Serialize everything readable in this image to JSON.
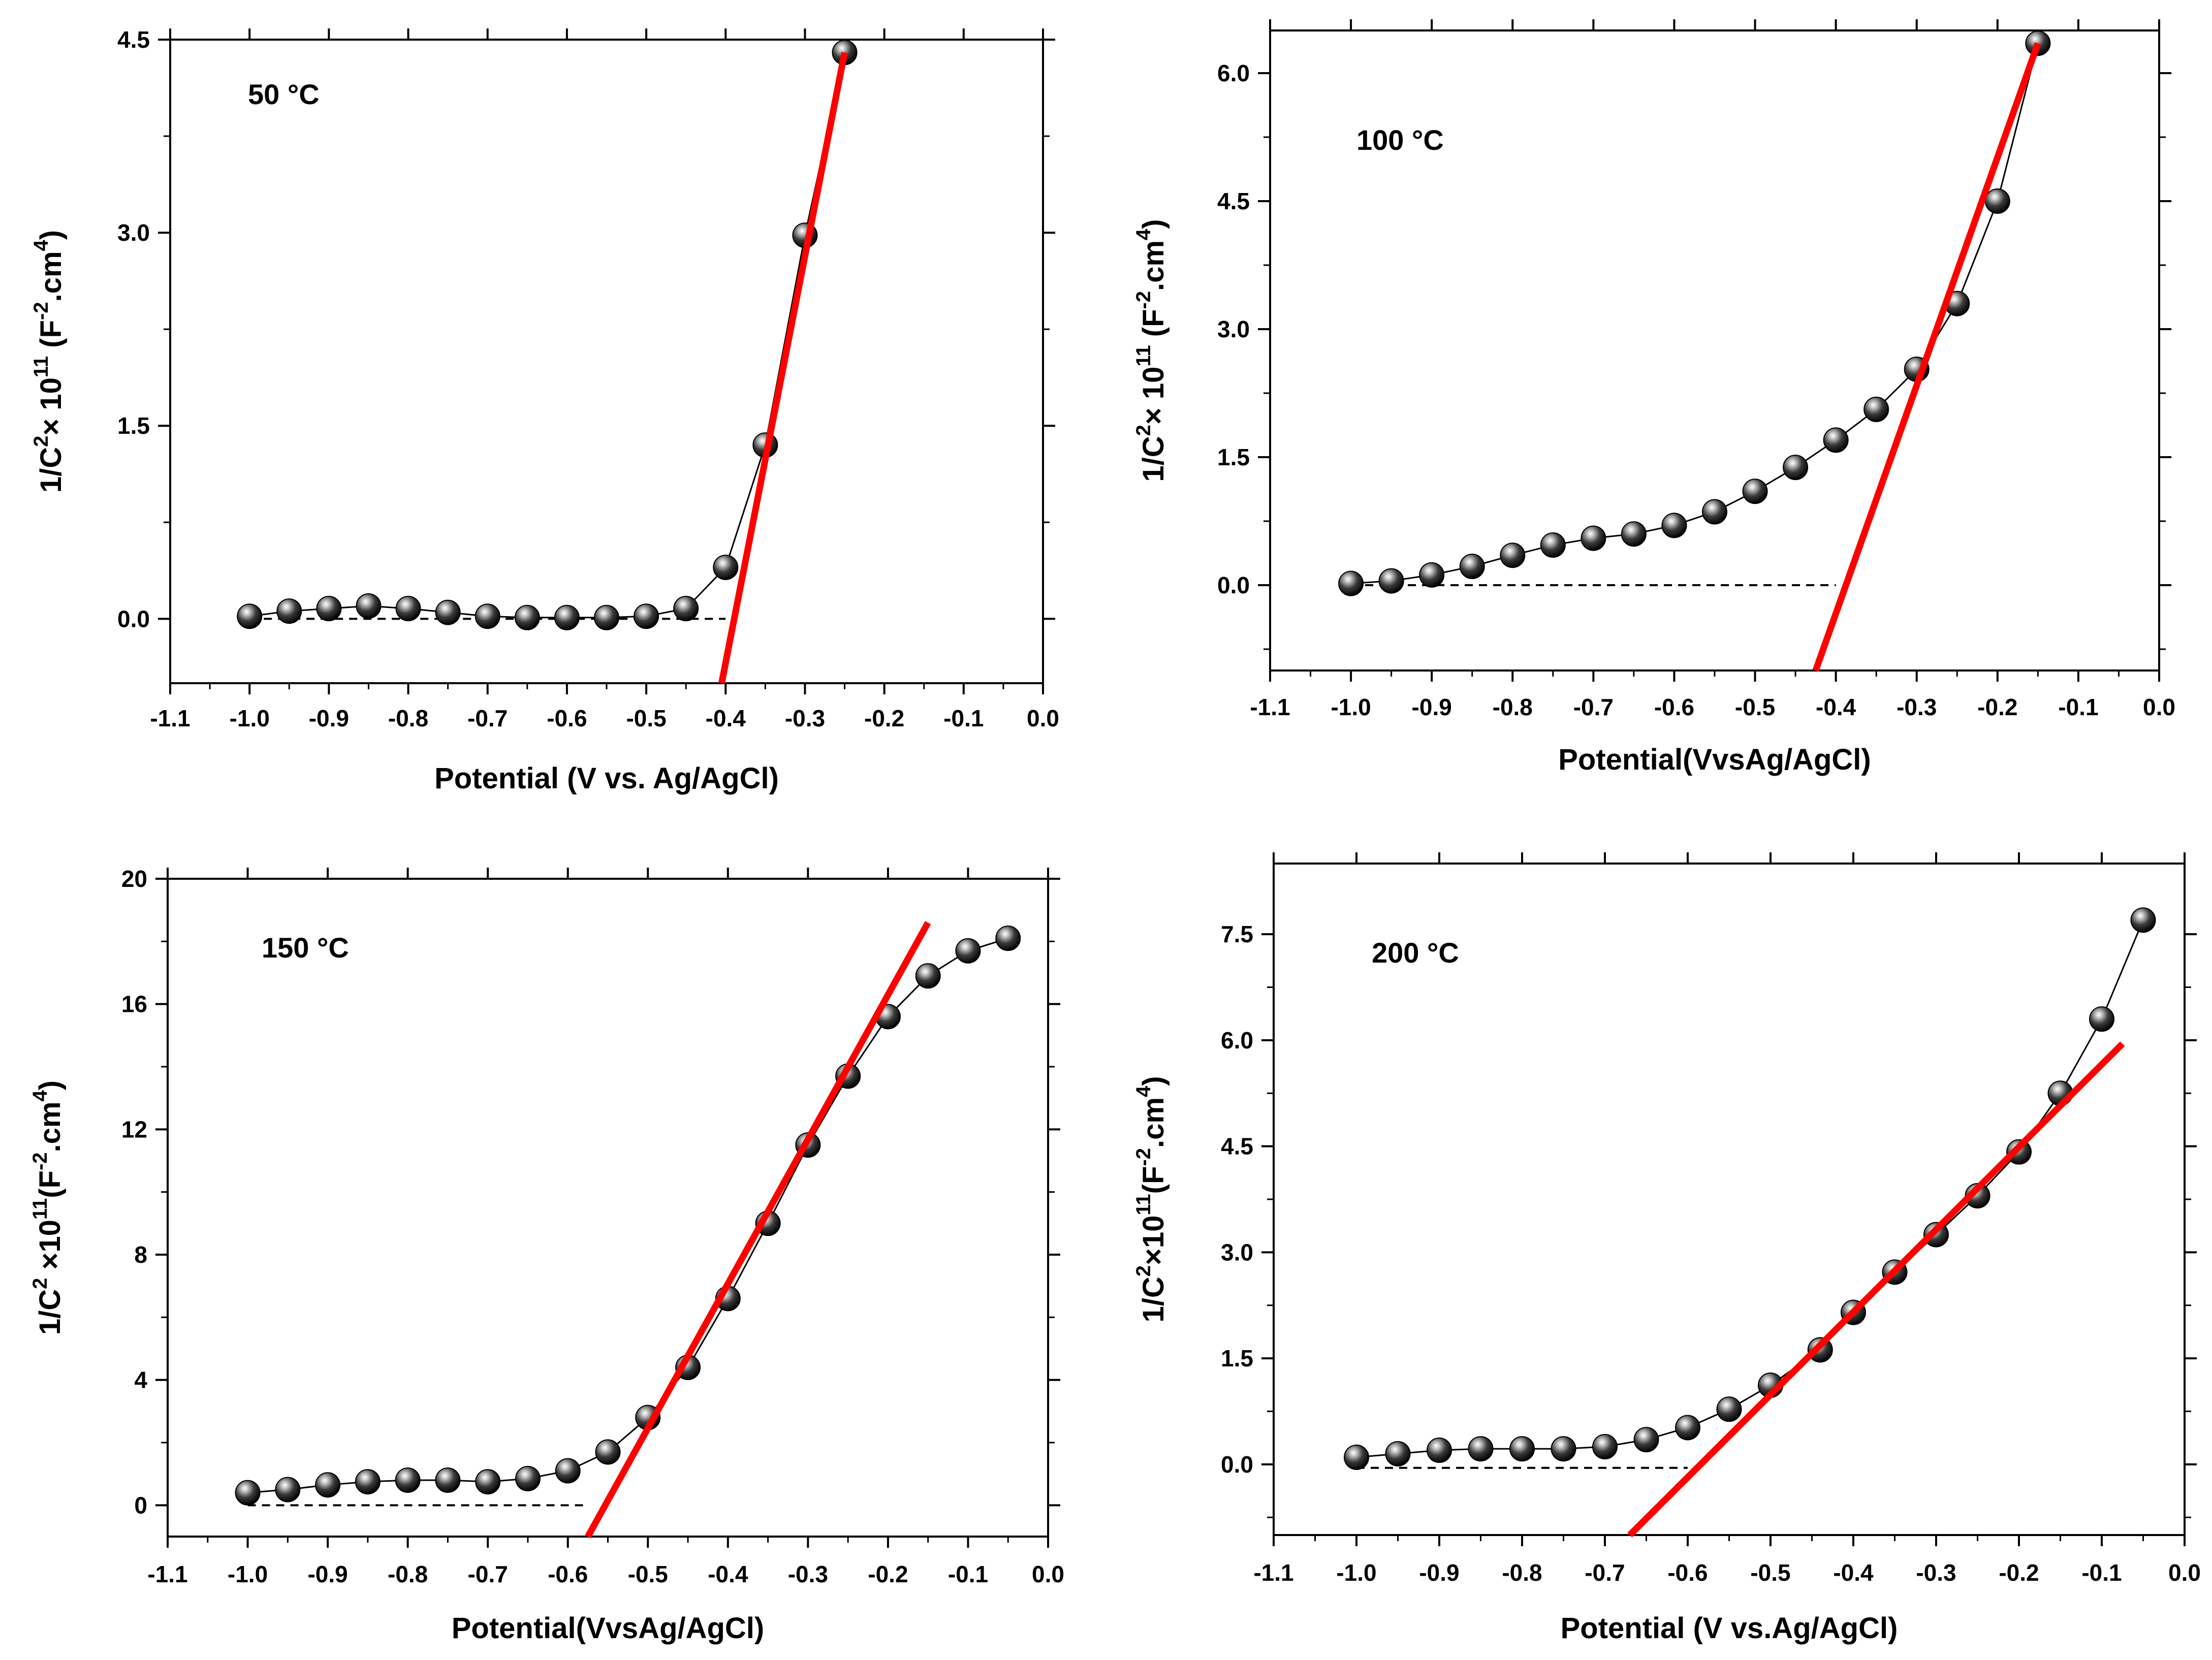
{
  "chart_data": [
    {
      "type": "scatter",
      "annotation": "50 °C",
      "xlabel": "Potential (V vs. Ag/AgCl)",
      "ylabel": {
        "pre": "1/C",
        "sup1": "2",
        "mid": "× 10",
        "sup2": "11",
        "unit_pre": " (F",
        "sup3": "-2",
        "unit_mid": ".cm",
        "sup4": "4",
        "unit_post": ")"
      },
      "xlim": [
        -1.1,
        0.0
      ],
      "ylim": [
        -0.5,
        4.5
      ],
      "xticks": [
        -1.1,
        -1.0,
        -0.9,
        -0.8,
        -0.7,
        -0.6,
        -0.5,
        -0.4,
        -0.3,
        -0.2,
        -0.1,
        0.0
      ],
      "xtick_labels": [
        "-1.1",
        "-1.0",
        "-0.9",
        "-0.8",
        "-0.7",
        "-0.6",
        "-0.5",
        "-0.4",
        "-0.3",
        "-0.2",
        "-0.1",
        "0.0"
      ],
      "yticks": [
        0.0,
        1.5,
        3.0,
        4.5
      ],
      "ytick_labels": [
        "0.0",
        "1.5",
        "3.0",
        "4.5"
      ],
      "yminor": [
        0.75,
        2.25,
        3.75
      ],
      "x": [
        -1.0,
        -0.95,
        -0.9,
        -0.85,
        -0.8,
        -0.75,
        -0.7,
        -0.65,
        -0.6,
        -0.55,
        -0.5,
        -0.45,
        -0.4,
        -0.35,
        -0.3,
        -0.25
      ],
      "y": [
        0.02,
        0.06,
        0.08,
        0.1,
        0.08,
        0.05,
        0.02,
        0.01,
        0.01,
        0.01,
        0.02,
        0.08,
        0.4,
        1.35,
        2.98,
        4.4
      ],
      "baseline": {
        "x": [
          -1.0,
          -0.4
        ],
        "y": 0.0
      },
      "fit_line": {
        "x": [
          -0.405,
          -0.25
        ],
        "y": [
          -0.5,
          4.4
        ]
      }
    },
    {
      "type": "scatter",
      "annotation": "100 °C",
      "xlabel": "Potential(VvsAg/AgCl)",
      "ylabel": {
        "pre": "1/C",
        "sup1": "2",
        "mid": "× 10",
        "sup2": "11",
        "unit_pre": " (F",
        "sup3": "-2",
        "unit_mid": ".cm",
        "sup4": "4",
        "unit_post": ")"
      },
      "xlim": [
        -1.1,
        0.0
      ],
      "ylim": [
        -1.0,
        6.5
      ],
      "xticks": [
        -1.1,
        -1.0,
        -0.9,
        -0.8,
        -0.7,
        -0.6,
        -0.5,
        -0.4,
        -0.3,
        -0.2,
        -0.1,
        0.0
      ],
      "xtick_labels": [
        "-1.1",
        "-1.0",
        "-0.9",
        "-0.8",
        "-0.7",
        "-0.6",
        "-0.5",
        "-0.4",
        "-0.3",
        "-0.2",
        "-0.1",
        "0.0"
      ],
      "yticks": [
        0.0,
        1.5,
        3.0,
        4.5,
        6.0
      ],
      "ytick_labels": [
        "0.0",
        "1.5",
        "3.0",
        "4.5",
        "6.0"
      ],
      "yminor": [
        -0.75,
        0.75,
        2.25,
        3.75,
        5.25
      ],
      "x": [
        -1.0,
        -0.95,
        -0.9,
        -0.85,
        -0.8,
        -0.75,
        -0.7,
        -0.65,
        -0.6,
        -0.55,
        -0.5,
        -0.45,
        -0.4,
        -0.35,
        -0.3,
        -0.25,
        -0.2,
        -0.15
      ],
      "y": [
        0.02,
        0.05,
        0.12,
        0.22,
        0.35,
        0.47,
        0.55,
        0.6,
        0.7,
        0.86,
        1.1,
        1.38,
        1.7,
        2.06,
        2.53,
        3.3,
        4.5,
        6.35
      ],
      "baseline": {
        "x": [
          -1.0,
          -0.4
        ],
        "y": 0.0
      },
      "fit_line": {
        "x": [
          -0.425,
          -0.15
        ],
        "y": [
          -1.0,
          6.35
        ]
      }
    },
    {
      "type": "scatter",
      "annotation": "150 °C",
      "xlabel": "Potential(VvsAg/AgCl)",
      "ylabel": {
        "pre": "1/C",
        "sup1": "2",
        "mid": " ×10",
        "sup2": "11",
        "unit_pre": "(F",
        "sup3": "-2",
        "unit_mid": ".cm",
        "sup4": "4",
        "unit_post": ")"
      },
      "xlim": [
        -1.1,
        0.0
      ],
      "ylim": [
        -1.0,
        20.0
      ],
      "xticks": [
        -1.1,
        -1.0,
        -0.9,
        -0.8,
        -0.7,
        -0.6,
        -0.5,
        -0.4,
        -0.3,
        -0.2,
        -0.1,
        0.0
      ],
      "xtick_labels": [
        "-1.1",
        "-1.0",
        "-0.9",
        "-0.8",
        "-0.7",
        "-0.6",
        "-0.5",
        "-0.4",
        "-0.3",
        "-0.2",
        "-0.1",
        "0.0"
      ],
      "yticks": [
        0,
        4,
        8,
        12,
        16,
        20
      ],
      "ytick_labels": [
        "0",
        "4",
        "8",
        "12",
        "16",
        "20"
      ],
      "yminor": [
        2,
        6,
        10,
        14,
        18
      ],
      "x": [
        -1.0,
        -0.95,
        -0.9,
        -0.85,
        -0.8,
        -0.75,
        -0.7,
        -0.65,
        -0.6,
        -0.55,
        -0.5,
        -0.45,
        -0.4,
        -0.35,
        -0.3,
        -0.25,
        -0.2,
        -0.15,
        -0.1,
        -0.05
      ],
      "y": [
        0.4,
        0.5,
        0.65,
        0.75,
        0.8,
        0.8,
        0.75,
        0.85,
        1.1,
        1.7,
        2.8,
        4.4,
        6.6,
        9.0,
        11.5,
        13.7,
        15.6,
        16.9,
        17.7,
        18.1
      ],
      "baseline": {
        "x": [
          -1.0,
          -0.58
        ],
        "y": 0.0
      },
      "fit_line": {
        "x": [
          -0.575,
          -0.15
        ],
        "y": [
          -1.0,
          18.6
        ]
      }
    },
    {
      "type": "scatter",
      "annotation": "200 °C",
      "xlabel": "Potential (V vs.Ag/AgCl)",
      "ylabel": {
        "pre": "1/C",
        "sup1": "2",
        "mid": "×10",
        "sup2": "11",
        "unit_pre": "(F",
        "sup3": "-2",
        "unit_mid": ".cm",
        "sup4": "4",
        "unit_post": ")"
      },
      "xlim": [
        -1.1,
        0.0
      ],
      "ylim": [
        -1.0,
        8.5
      ],
      "xticks": [
        -1.1,
        -1.0,
        -0.9,
        -0.8,
        -0.7,
        -0.6,
        -0.5,
        -0.4,
        -0.3,
        -0.2,
        -0.1,
        0.0
      ],
      "xtick_labels": [
        "-1.1",
        "-1.0",
        "-0.9",
        "-0.8",
        "-0.7",
        "-0.6",
        "-0.5",
        "-0.4",
        "-0.3",
        "-0.2",
        "-0.1",
        "0.0"
      ],
      "yticks": [
        0.0,
        1.5,
        3.0,
        4.5,
        6.0,
        7.5
      ],
      "ytick_labels": [
        "0.0",
        "1.5",
        "3.0",
        "4.5",
        "6.0",
        "7.5"
      ],
      "yminor": [
        -0.75,
        0.75,
        2.25,
        3.75,
        5.25,
        6.75
      ],
      "x": [
        -1.0,
        -0.95,
        -0.9,
        -0.85,
        -0.8,
        -0.75,
        -0.7,
        -0.65,
        -0.6,
        -0.55,
        -0.5,
        -0.44,
        -0.4,
        -0.35,
        -0.3,
        -0.25,
        -0.2,
        -0.15,
        -0.1,
        -0.05
      ],
      "y": [
        0.1,
        0.15,
        0.2,
        0.22,
        0.22,
        0.22,
        0.25,
        0.35,
        0.52,
        0.78,
        1.12,
        1.62,
        2.15,
        2.72,
        3.25,
        3.8,
        4.42,
        5.25,
        6.3,
        7.7
      ],
      "baseline": {
        "x": [
          -1.0,
          -0.6
        ],
        "y": -0.05
      },
      "fit_line": {
        "x": [
          -0.67,
          -0.075
        ],
        "y": [
          -1.0,
          5.95
        ]
      }
    }
  ],
  "colors": {
    "fit": "#ff0000",
    "axis": "#000000",
    "marker": "#000000"
  }
}
